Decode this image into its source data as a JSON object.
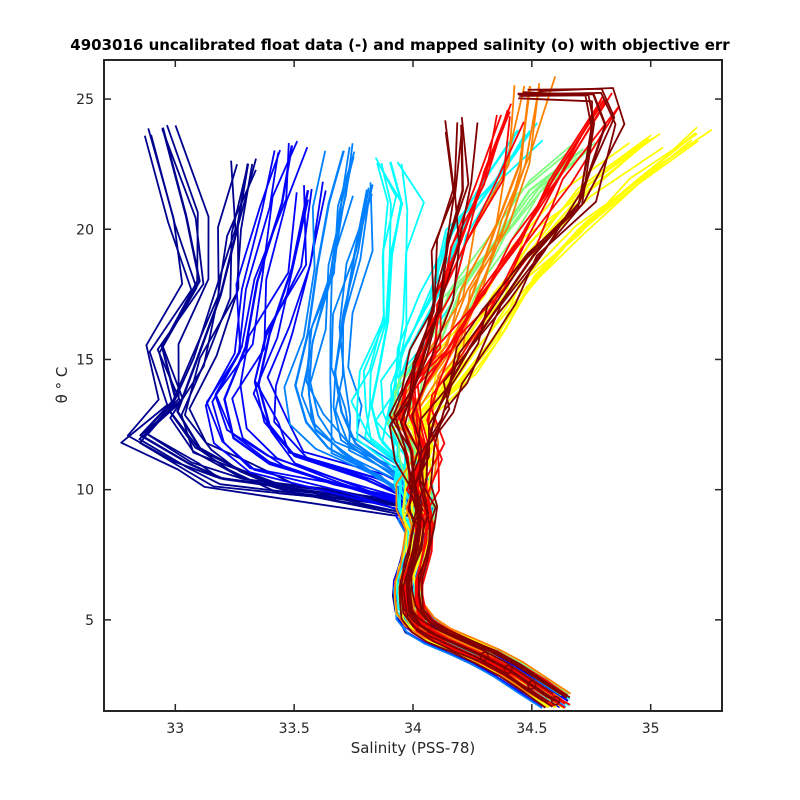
{
  "chart_data": {
    "type": "line",
    "title": "4903016 uncalibrated float data (-) and mapped salinity (o) with objective err",
    "xlabel": "Salinity (PSS-78)",
    "ylabel": "θ ° C",
    "xlim": [
      32.7,
      35.3
    ],
    "ylim": [
      1.5,
      26.5
    ],
    "x_ticks": [
      33,
      33.5,
      34,
      34.5,
      35
    ],
    "x_tick_labels": [
      "33",
      "33.5",
      "34",
      "34.5",
      "35"
    ],
    "y_ticks": [
      5,
      10,
      15,
      20,
      25
    ],
    "y_tick_labels": [
      "5",
      "10",
      "15",
      "20",
      "25"
    ],
    "grid": false,
    "legend": "none",
    "colormap": "jet",
    "colormap_colors": [
      "#00008f",
      "#0000ff",
      "#0080ff",
      "#00ffff",
      "#80ff80",
      "#ffff00",
      "#ff8000",
      "#ff0000",
      "#800000"
    ],
    "shared_deep_branch": [
      [
        34.6,
        1.9
      ],
      [
        34.5,
        2.5
      ],
      [
        34.4,
        3.1
      ],
      [
        34.3,
        3.6
      ],
      [
        34.2,
        4.0
      ],
      [
        34.1,
        4.4
      ],
      [
        34.03,
        4.8
      ],
      [
        33.99,
        5.3
      ],
      [
        33.98,
        5.9
      ],
      [
        33.98,
        6.5
      ],
      [
        34.0,
        7.1
      ],
      [
        34.02,
        7.8
      ],
      [
        34.03,
        8.5
      ],
      [
        34.02,
        9.2
      ]
    ],
    "series": [
      {
        "color_index": 0,
        "values": [
          [
            34.0,
            9.3
          ],
          [
            33.6,
            9.9
          ],
          [
            33.2,
            10.4
          ],
          [
            33.05,
            11.0
          ],
          [
            32.85,
            12.1
          ],
          [
            33.0,
            13.5
          ],
          [
            32.95,
            15.5
          ],
          [
            33.1,
            18.0
          ],
          [
            33.05,
            20.5
          ],
          [
            32.95,
            23.9
          ]
        ]
      },
      {
        "color_index": 0,
        "values": [
          [
            34.0,
            9.4
          ],
          [
            33.5,
            10.0
          ],
          [
            33.25,
            10.8
          ],
          [
            33.1,
            11.6
          ],
          [
            33.0,
            13.0
          ],
          [
            33.1,
            15.0
          ],
          [
            33.2,
            17.5
          ],
          [
            33.25,
            20.0
          ],
          [
            33.3,
            22.5
          ]
        ]
      },
      {
        "color_index": 1,
        "values": [
          [
            34.0,
            9.5
          ],
          [
            33.7,
            10.2
          ],
          [
            33.4,
            11.0
          ],
          [
            33.25,
            12.0
          ],
          [
            33.2,
            13.5
          ],
          [
            33.3,
            15.5
          ],
          [
            33.35,
            18.0
          ],
          [
            33.45,
            21.0
          ],
          [
            33.5,
            23.2
          ]
        ]
      },
      {
        "color_index": 1,
        "values": [
          [
            34.0,
            9.6
          ],
          [
            33.8,
            10.4
          ],
          [
            33.5,
            11.3
          ],
          [
            33.4,
            12.5
          ],
          [
            33.35,
            14.0
          ],
          [
            33.4,
            16.0
          ],
          [
            33.5,
            18.5
          ],
          [
            33.55,
            21.5
          ]
        ]
      },
      {
        "color_index": 2,
        "values": [
          [
            34.0,
            9.7
          ],
          [
            33.85,
            10.6
          ],
          [
            33.65,
            11.6
          ],
          [
            33.55,
            12.6
          ],
          [
            33.5,
            14.0
          ],
          [
            33.55,
            16.0
          ],
          [
            33.6,
            18.5
          ],
          [
            33.65,
            21.0
          ],
          [
            33.7,
            23.0
          ]
        ]
      },
      {
        "color_index": 2,
        "values": [
          [
            34.0,
            9.8
          ],
          [
            33.9,
            10.8
          ],
          [
            33.75,
            11.8
          ],
          [
            33.7,
            13.0
          ],
          [
            33.68,
            14.5
          ],
          [
            33.7,
            16.5
          ],
          [
            33.75,
            19.0
          ],
          [
            33.8,
            21.5
          ]
        ]
      },
      {
        "color_index": 3,
        "values": [
          [
            34.0,
            10.0
          ],
          [
            33.95,
            11.0
          ],
          [
            33.85,
            12.0
          ],
          [
            33.82,
            13.2
          ],
          [
            33.85,
            14.5
          ],
          [
            33.9,
            16.5
          ],
          [
            33.92,
            19.0
          ],
          [
            33.95,
            21.0
          ],
          [
            33.9,
            22.6
          ]
        ]
      },
      {
        "color_index": 3,
        "values": [
          [
            34.0,
            10.2
          ],
          [
            33.97,
            11.5
          ],
          [
            33.9,
            12.8
          ],
          [
            33.93,
            14.0
          ],
          [
            34.0,
            15.5
          ],
          [
            34.1,
            17.5
          ],
          [
            34.2,
            20.0
          ],
          [
            34.35,
            22.0
          ],
          [
            34.5,
            23.8
          ]
        ]
      },
      {
        "color_index": 4,
        "values": [
          [
            34.0,
            10.3
          ],
          [
            34.0,
            11.5
          ],
          [
            33.95,
            12.6
          ],
          [
            34.0,
            14.0
          ],
          [
            34.1,
            15.5
          ],
          [
            34.2,
            17.5
          ],
          [
            34.35,
            19.5
          ],
          [
            34.5,
            21.5
          ],
          [
            34.7,
            23.0
          ]
        ]
      },
      {
        "color_index": 5,
        "values": [
          [
            34.02,
            10.3
          ],
          [
            34.05,
            11.5
          ],
          [
            34.0,
            12.5
          ],
          [
            34.1,
            13.8
          ],
          [
            34.2,
            15.5
          ],
          [
            34.35,
            17.5
          ],
          [
            34.5,
            19.5
          ],
          [
            34.7,
            21.5
          ],
          [
            35.0,
            23.5
          ]
        ]
      },
      {
        "color_index": 5,
        "values": [
          [
            34.03,
            10.4
          ],
          [
            34.08,
            11.6
          ],
          [
            34.05,
            12.8
          ],
          [
            34.2,
            14.2
          ],
          [
            34.35,
            16.0
          ],
          [
            34.5,
            18.0
          ],
          [
            34.7,
            20.0
          ],
          [
            34.95,
            22.0
          ],
          [
            35.2,
            23.7
          ]
        ]
      },
      {
        "color_index": 6,
        "values": [
          [
            34.02,
            10.3
          ],
          [
            34.05,
            11.5
          ],
          [
            34.0,
            12.8
          ],
          [
            34.05,
            14.0
          ],
          [
            34.15,
            15.5
          ],
          [
            34.25,
            17.5
          ],
          [
            34.35,
            20.0
          ],
          [
            34.45,
            22.5
          ],
          [
            34.5,
            25.5
          ]
        ]
      },
      {
        "color_index": 7,
        "values": [
          [
            34.01,
            10.2
          ],
          [
            34.0,
            11.5
          ],
          [
            33.95,
            12.8
          ],
          [
            33.97,
            14.0
          ],
          [
            34.05,
            15.5
          ],
          [
            34.1,
            17.5
          ],
          [
            34.2,
            19.5
          ],
          [
            34.3,
            22.0
          ],
          [
            34.4,
            24.5
          ]
        ]
      },
      {
        "color_index": 7,
        "values": [
          [
            34.02,
            10.2
          ],
          [
            34.05,
            11.5
          ],
          [
            34.0,
            12.8
          ],
          [
            34.05,
            14.0
          ],
          [
            34.15,
            15.5
          ],
          [
            34.3,
            17.5
          ],
          [
            34.45,
            19.5
          ],
          [
            34.6,
            22.0
          ],
          [
            34.8,
            25.0
          ]
        ]
      },
      {
        "color_index": 8,
        "values": [
          [
            34.01,
            10.1
          ],
          [
            34.0,
            11.4
          ],
          [
            33.95,
            12.6
          ],
          [
            34.0,
            13.8
          ],
          [
            34.05,
            15.2
          ],
          [
            34.1,
            17.0
          ],
          [
            34.15,
            19.5
          ],
          [
            34.2,
            21.5
          ],
          [
            34.2,
            24.0
          ]
        ]
      },
      {
        "color_index": 8,
        "values": [
          [
            34.02,
            10.2
          ],
          [
            34.05,
            11.5
          ],
          [
            34.1,
            12.8
          ],
          [
            34.15,
            14.0
          ],
          [
            34.25,
            15.5
          ],
          [
            34.35,
            17.0
          ],
          [
            34.5,
            19.0
          ],
          [
            34.7,
            21.0
          ],
          [
            34.8,
            24.0
          ],
          [
            34.75,
            25.2
          ],
          [
            34.45,
            25.2
          ]
        ]
      }
    ]
  }
}
